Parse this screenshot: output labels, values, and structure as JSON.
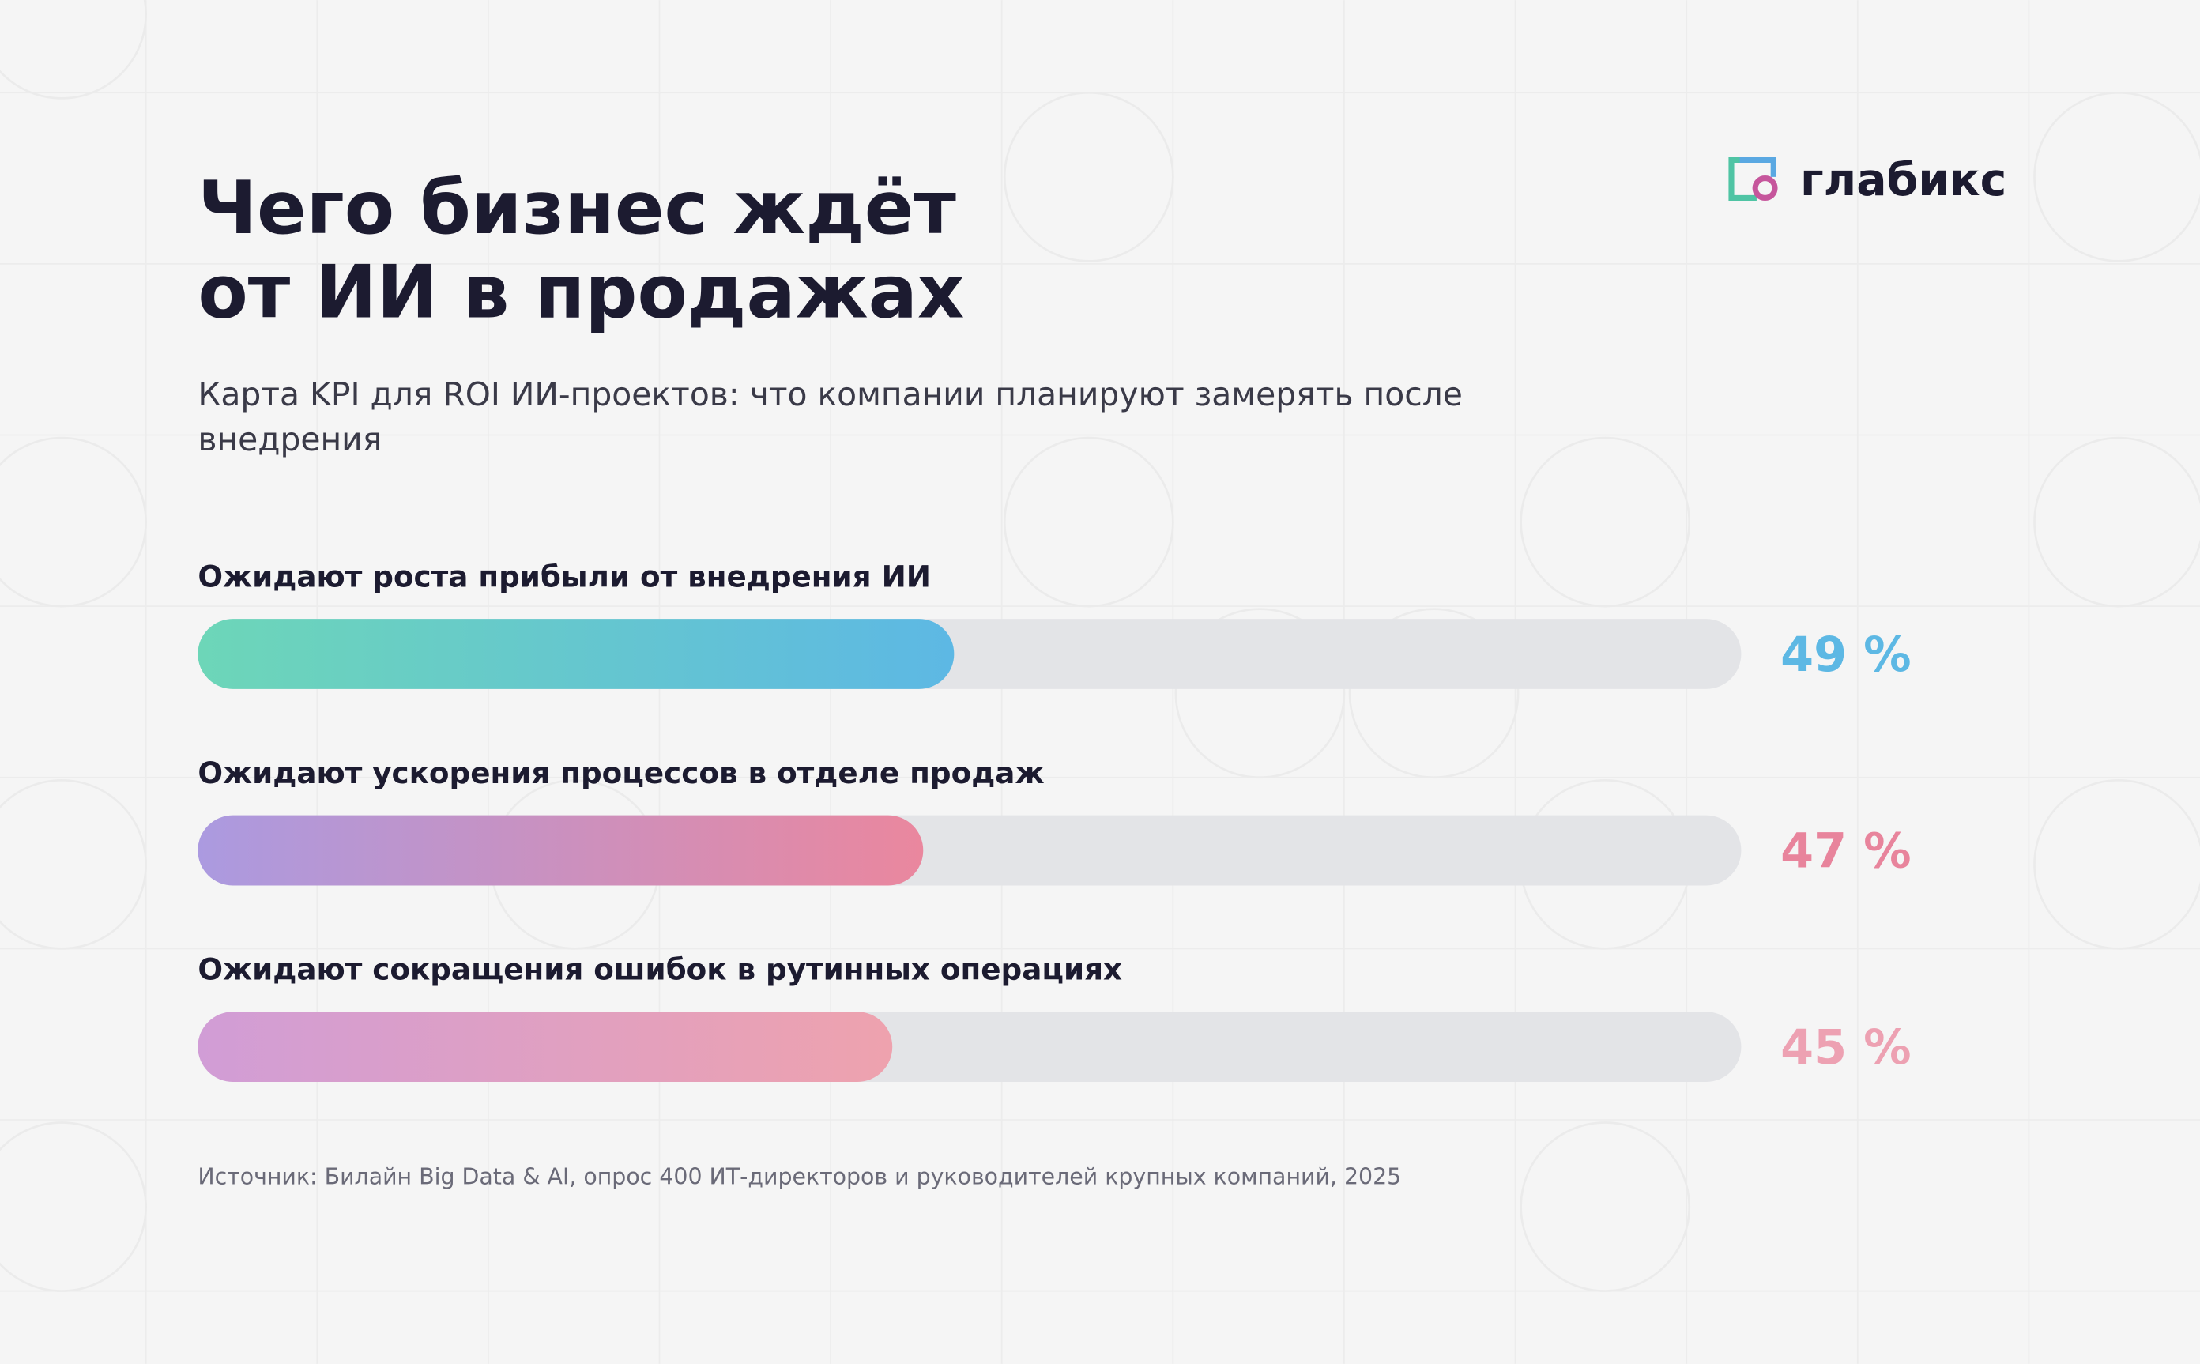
{
  "chart_data": {
    "type": "bar",
    "orientation": "horizontal",
    "title": [
      "Чего бизнес ждёт",
      "от ИИ в продажах"
    ],
    "subtitle": [
      "Карта KPI для ROI ИИ-проектов: что компании планируют замерять после",
      "внедрения"
    ],
    "brand": "глабикс",
    "categories": [
      "Ожидают роста прибыли от внедрения ИИ",
      "Ожидают ускорения процессов в отделе продаж",
      "Ожидают сокращения ошибок в рутинных операциях"
    ],
    "values": [
      49,
      47,
      45
    ],
    "value_labels": [
      "49 %",
      "47 %",
      "45 %"
    ],
    "xlim": [
      0,
      100
    ],
    "colors": [
      [
        "#6dd6b8",
        "#5db8e4"
      ],
      [
        "#ab9ae0",
        "#ea879e"
      ],
      [
        "#d19dd6",
        "#eea2ae"
      ]
    ],
    "label_colors": [
      "#5db8e4",
      "#e8849c",
      "#eda1b2"
    ],
    "track_color": "#e3e4e7",
    "source": "Источник: Билайн Big Data & AI, опрос 400 ИТ-директоров и руководителей крупных компаний, 2025"
  }
}
